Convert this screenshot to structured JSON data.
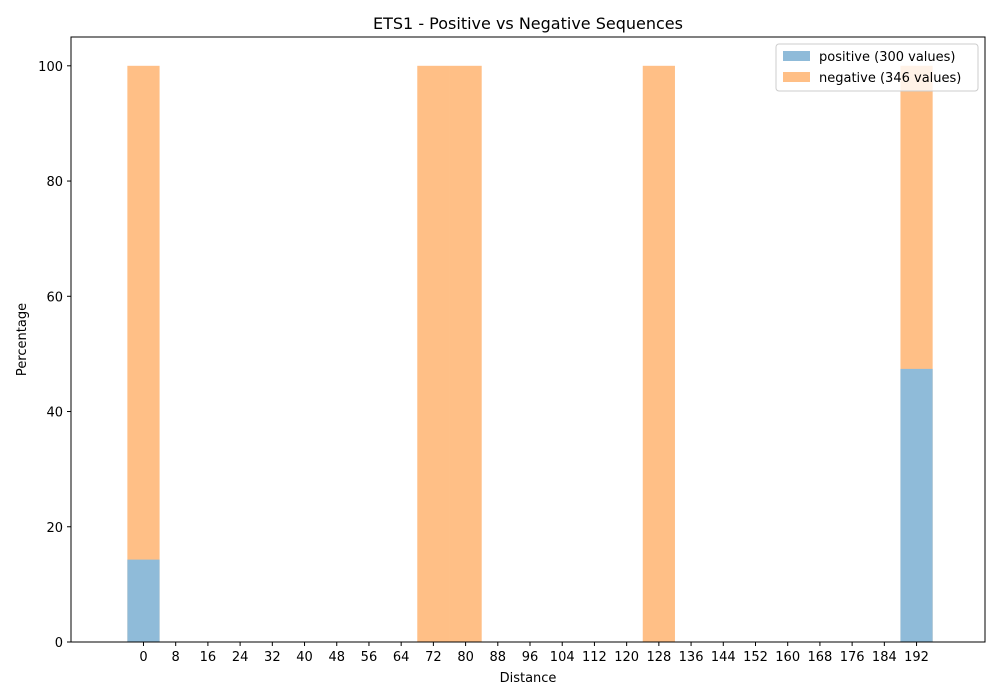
{
  "chart_data": {
    "type": "bar",
    "title": "ETS1 - Positive vs Negative Sequences",
    "xlabel": "Distance",
    "ylabel": "Percentage",
    "xlim": [
      -18,
      209
    ],
    "ylim": [
      0,
      105
    ],
    "x_ticks": [
      0,
      8,
      16,
      24,
      32,
      40,
      48,
      56,
      64,
      72,
      80,
      88,
      96,
      104,
      112,
      120,
      128,
      136,
      144,
      152,
      160,
      168,
      176,
      184,
      192
    ],
    "y_ticks": [
      0,
      20,
      40,
      60,
      80,
      100
    ],
    "bar_width": 8,
    "grid": false,
    "legend_position": "top-right",
    "series": [
      {
        "name": "positive (300 values)",
        "color": "#8fbbd9",
        "points": [
          {
            "x": 0,
            "y": 14.3
          },
          {
            "x": 192,
            "y": 47.4
          }
        ]
      },
      {
        "name": "negative (346 values)",
        "color": "#ffbf86",
        "points": [
          {
            "x": 0,
            "y": 100
          },
          {
            "x": 72,
            "y": 100
          },
          {
            "x": 80,
            "y": 100
          },
          {
            "x": 128,
            "y": 100
          },
          {
            "x": 192,
            "y": 100
          }
        ]
      }
    ]
  }
}
